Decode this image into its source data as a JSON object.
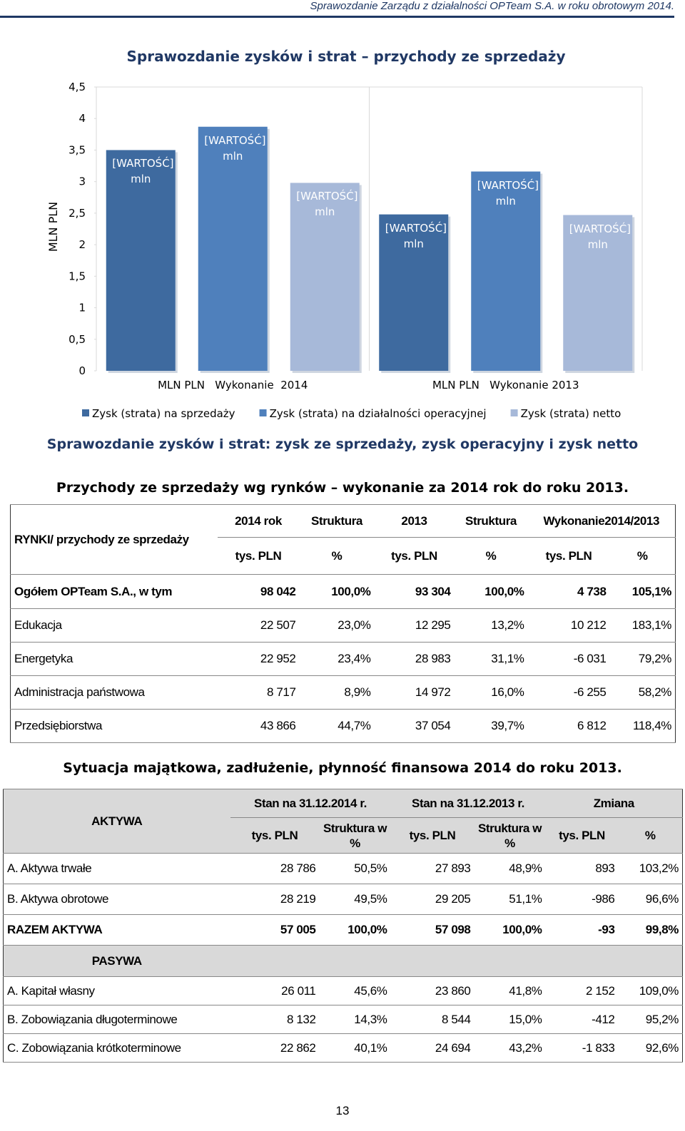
{
  "header": {
    "title": "Sprawozdanie Zarządu z działalności OPTeam S.A. w roku obrotowym 2014."
  },
  "chart_data": {
    "type": "bar",
    "title": "Sprawozdanie zysków i strat – przychody ze sprzedaży",
    "y_label": "MLN PLN",
    "categories": [
      "MLN PLN   Wykonanie  2014",
      "MLN PLN   Wykonanie 2013"
    ],
    "series": [
      {
        "name": "Zysk (strata) na sprzedaży",
        "color": "#3e6a9f",
        "values": [
          3.5,
          2.48
        ],
        "value_labels": [
          "[WARTOŚĆ] mln",
          "[WARTOŚĆ] mln"
        ]
      },
      {
        "name": "Zysk (strata) na działalności operacyjnej",
        "color": "#4f80bc",
        "values": [
          3.87,
          3.16
        ],
        "value_labels": [
          "[WARTOŚĆ] mln",
          "[WARTOŚĆ] mln"
        ]
      },
      {
        "name": "Zysk (strata) netto",
        "color": "#a7b9d9",
        "values": [
          2.98,
          2.47
        ],
        "value_labels": [
          "[WARTOŚĆ] mln",
          "[WARTOŚĆ] mln"
        ]
      }
    ],
    "ylim": [
      0,
      4.5
    ],
    "yticks": [
      0,
      {
        "value": 0.5,
        "label": "0,5"
      },
      1,
      {
        "value": 1.5,
        "label": "1,5"
      },
      2,
      {
        "value": 2.5,
        "label": "2,5"
      },
      3,
      {
        "value": 3.5,
        "label": "3,5"
      },
      4,
      {
        "value": 4.5,
        "label": "4,5"
      }
    ],
    "legend": "bottom"
  },
  "chart_caption": "Sprawozdanie zysków i strat:  zysk ze sprzedaży, zysk operacyjny i zysk netto",
  "markets_table": {
    "title": "Przychody ze sprzedaży wg rynków – wykonanie za 2014 rok do roku 2013.",
    "corner": "RYNKI/ przychody ze sprzedaży",
    "header": [
      "2014 rok",
      "Struktura",
      "2013",
      "Struktura",
      "Wykonanie2014/2013"
    ],
    "units": [
      "tys. PLN",
      "%",
      "tys. PLN",
      "%",
      "tys. PLN",
      "%"
    ],
    "rows": [
      [
        "Ogółem OPTeam S.A., w tym",
        "98 042",
        "100,0%",
        "93 304",
        "100,0%",
        "4 738",
        "105,1%"
      ],
      [
        "Edukacja",
        "22 507",
        "23,0%",
        "12 295",
        "13,2%",
        "10 212",
        "183,1%"
      ],
      [
        "Energetyka",
        "22 952",
        "23,4%",
        "28 983",
        "31,1%",
        "-6 031",
        "79,2%"
      ],
      [
        "Administracja państwowa",
        "8 717",
        "8,9%",
        "14 972",
        "16,0%",
        "-6 255",
        "58,2%"
      ],
      [
        "Przedsiębiorstwa",
        "43 866",
        "44,7%",
        "37 054",
        "39,7%",
        "6 812",
        "118,4%"
      ]
    ]
  },
  "balance_table": {
    "title": "Sytuacja majątkowa, zadłużenie, płynność finansowa 2014 do roku 2013.",
    "corner": "AKTYWA",
    "header": [
      "Stan na 31.12.2014 r.",
      "Stan na 31.12.2013 r.",
      "Zmiana"
    ],
    "units": [
      "tys. PLN",
      "Struktura w %",
      "tys. PLN",
      "Struktura w %",
      "tys. PLN",
      "%"
    ],
    "assets": [
      [
        "A. Aktywa trwałe",
        "28 786",
        "50,5%",
        "27 893",
        "48,9%",
        "893",
        "103,2%"
      ],
      [
        "B. Aktywa obrotowe",
        "28 219",
        "49,5%",
        "29 205",
        "51,1%",
        "-986",
        "96,6%"
      ],
      [
        "RAZEM AKTYWA",
        "57 005",
        "100,0%",
        "57 098",
        "100,0%",
        "-93",
        "99,8%"
      ]
    ],
    "liabilities_label": "PASYWA",
    "liabilities": [
      [
        "A. Kapitał własny",
        "26 011",
        "45,6%",
        "23 860",
        "41,8%",
        "2 152",
        "109,0%"
      ],
      [
        "B. Zobowiązania długoterminowe",
        "8 132",
        "14,3%",
        "8 544",
        "15,0%",
        "-412",
        "95,2%"
      ],
      [
        "C. Zobowiązania krótkoterminowe",
        "22 862",
        "40,1%",
        "24 694",
        "43,2%",
        "-1 833",
        "92,6%"
      ]
    ]
  },
  "page_number": "13"
}
